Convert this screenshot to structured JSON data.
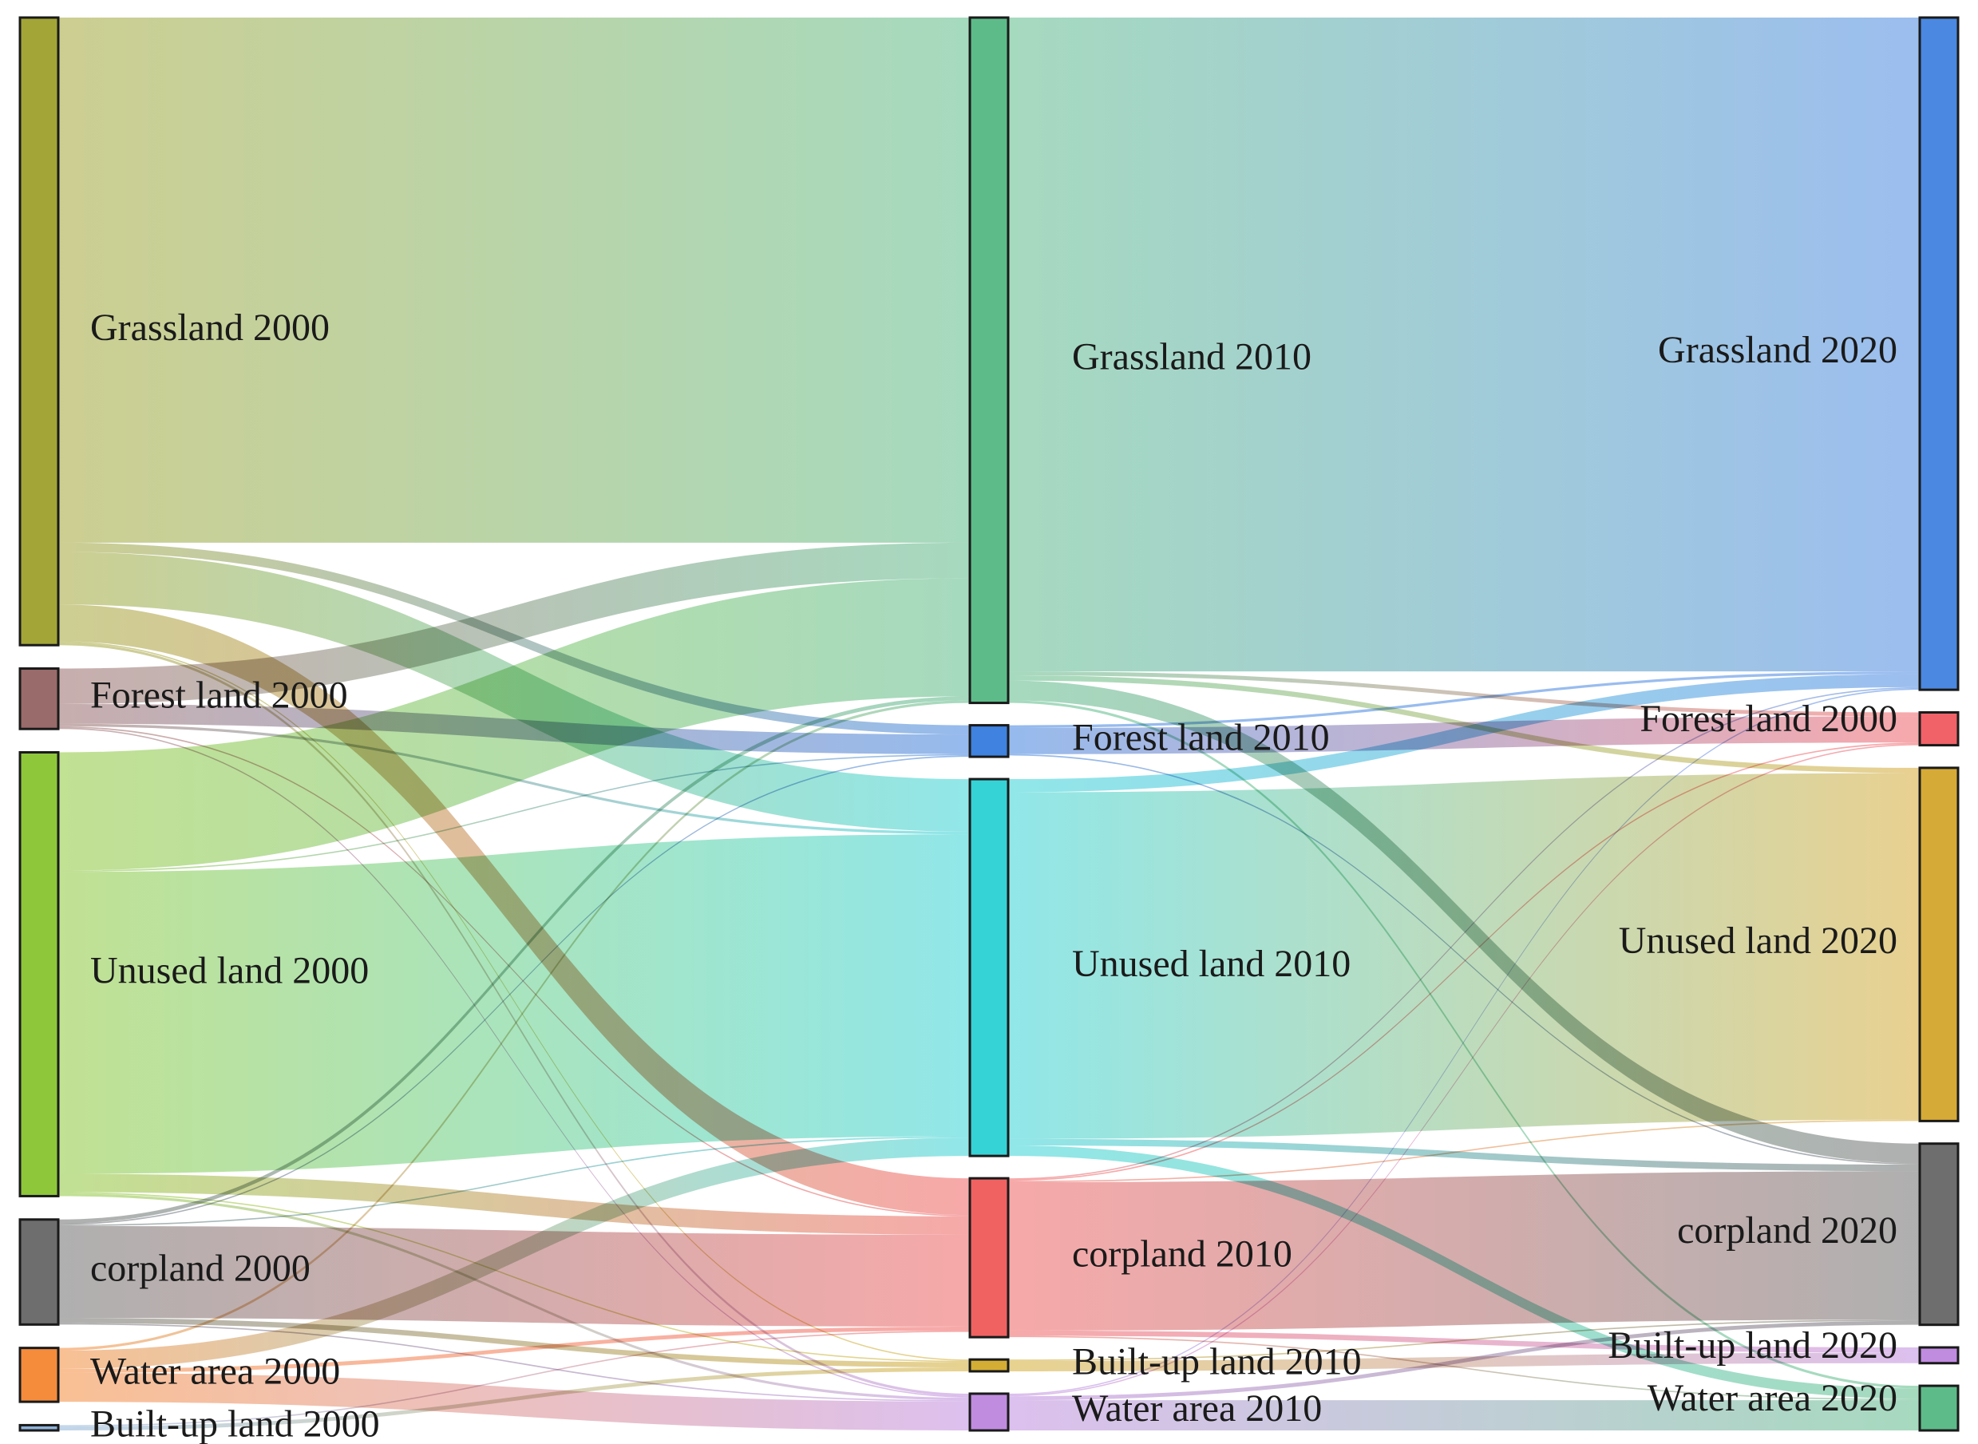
{
  "chart_data": {
    "type": "sankey",
    "title": "",
    "columns": [
      [
        {
          "id": "g00",
          "label": "Grassland 2000",
          "color": "#a3a637"
        },
        {
          "id": "f00",
          "label": "Forest land 2000",
          "color": "#9a6b6b"
        },
        {
          "id": "u00",
          "label": "Unused land 2000",
          "color": "#8ec83a"
        },
        {
          "id": "c00",
          "label": "corpland 2000",
          "color": "#6e6e6e"
        },
        {
          "id": "w00",
          "label": "Water area 2000",
          "color": "#f58c3c"
        },
        {
          "id": "b00",
          "label": "Built-up land 2000",
          "color": "#8fb3d9"
        }
      ],
      [
        {
          "id": "g10",
          "label": "Grassland 2010",
          "color": "#5dbb8a"
        },
        {
          "id": "f10",
          "label": "Forest land 2010",
          "color": "#3f82df"
        },
        {
          "id": "u10",
          "label": "Unused land 2010",
          "color": "#36d3d6"
        },
        {
          "id": "c10",
          "label": "corpland 2010",
          "color": "#f06262"
        },
        {
          "id": "b10",
          "label": "Built-up land 2010",
          "color": "#d4ae34"
        },
        {
          "id": "w10",
          "label": "Water area 2010",
          "color": "#c08ce0"
        }
      ],
      [
        {
          "id": "g20",
          "label": "Grassland 2020",
          "color": "#4a88e2"
        },
        {
          "id": "f20",
          "label": "Forest land 2000",
          "color": "#f06268"
        },
        {
          "id": "u20",
          "label": "Unused land 2020",
          "color": "#d6aa36"
        },
        {
          "id": "c20",
          "label": "corpland 2020",
          "color": "#6e6e6e"
        },
        {
          "id": "b20",
          "label": "Built-up land 2020",
          "color": "#c08ce0"
        },
        {
          "id": "w20",
          "label": "Water area 2020",
          "color": "#5dbb8a"
        }
      ]
    ],
    "links": [
      {
        "source": "g00",
        "target": "g10",
        "value": 400
      },
      {
        "source": "g00",
        "target": "f10",
        "value": 7
      },
      {
        "source": "g00",
        "target": "u10",
        "value": 40
      },
      {
        "source": "g00",
        "target": "c10",
        "value": 28
      },
      {
        "source": "g00",
        "target": "b10",
        "value": 1
      },
      {
        "source": "g00",
        "target": "w10",
        "value": 2
      },
      {
        "source": "f00",
        "target": "g10",
        "value": 27
      },
      {
        "source": "f00",
        "target": "f10",
        "value": 15
      },
      {
        "source": "f00",
        "target": "u10",
        "value": 2
      },
      {
        "source": "f00",
        "target": "c10",
        "value": 1
      },
      {
        "source": "f00",
        "target": "w10",
        "value": 1
      },
      {
        "source": "u00",
        "target": "g10",
        "value": 90
      },
      {
        "source": "u00",
        "target": "f10",
        "value": 1
      },
      {
        "source": "u00",
        "target": "u10",
        "value": 230
      },
      {
        "source": "u00",
        "target": "c10",
        "value": 14
      },
      {
        "source": "u00",
        "target": "b10",
        "value": 1
      },
      {
        "source": "u00",
        "target": "w10",
        "value": 2
      },
      {
        "source": "c00",
        "target": "g10",
        "value": 3
      },
      {
        "source": "c00",
        "target": "f10",
        "value": 1
      },
      {
        "source": "c00",
        "target": "u10",
        "value": 1
      },
      {
        "source": "c00",
        "target": "c10",
        "value": 70
      },
      {
        "source": "c00",
        "target": "b10",
        "value": 4
      },
      {
        "source": "c00",
        "target": "w10",
        "value": 1
      },
      {
        "source": "w00",
        "target": "g10",
        "value": 2
      },
      {
        "source": "w00",
        "target": "u10",
        "value": 14
      },
      {
        "source": "w00",
        "target": "c10",
        "value": 3
      },
      {
        "source": "w00",
        "target": "w10",
        "value": 22
      },
      {
        "source": "b00",
        "target": "c10",
        "value": 1
      },
      {
        "source": "b00",
        "target": "b10",
        "value": 3
      },
      {
        "source": "g10",
        "target": "g20",
        "value": 498
      },
      {
        "source": "g10",
        "target": "f20",
        "value": 3
      },
      {
        "source": "g10",
        "target": "u20",
        "value": 4
      },
      {
        "source": "g10",
        "target": "c20",
        "value": 15
      },
      {
        "source": "g10",
        "target": "w20",
        "value": 2
      },
      {
        "source": "f10",
        "target": "g20",
        "value": 2
      },
      {
        "source": "f10",
        "target": "f20",
        "value": 20
      },
      {
        "source": "f10",
        "target": "c20",
        "value": 1
      },
      {
        "source": "u10",
        "target": "g20",
        "value": 10
      },
      {
        "source": "u10",
        "target": "u20",
        "value": 264
      },
      {
        "source": "u10",
        "target": "c20",
        "value": 5
      },
      {
        "source": "u10",
        "target": "w20",
        "value": 8
      },
      {
        "source": "c10",
        "target": "g20",
        "value": 1
      },
      {
        "source": "c10",
        "target": "f20",
        "value": 1
      },
      {
        "source": "c10",
        "target": "u20",
        "value": 1
      },
      {
        "source": "c10",
        "target": "c20",
        "value": 113
      },
      {
        "source": "c10",
        "target": "b20",
        "value": 4
      },
      {
        "source": "c10",
        "target": "w20",
        "value": 1
      },
      {
        "source": "b10",
        "target": "c20",
        "value": 1
      },
      {
        "source": "b10",
        "target": "b20",
        "value": 8
      },
      {
        "source": "w10",
        "target": "g20",
        "value": 1
      },
      {
        "source": "w10",
        "target": "f20",
        "value": 1
      },
      {
        "source": "w10",
        "target": "c20",
        "value": 3
      },
      {
        "source": "w10",
        "target": "w20",
        "value": 23
      }
    ]
  }
}
